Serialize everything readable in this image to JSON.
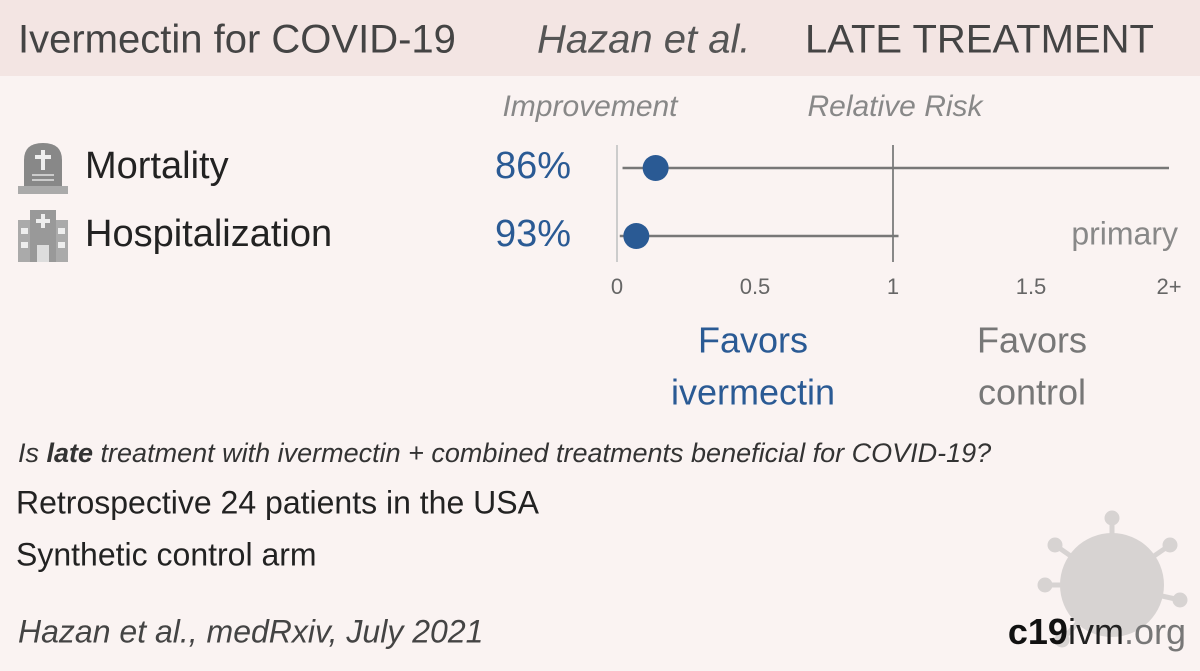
{
  "chart_data": {
    "type": "forest",
    "title": "Ivermectin for COVID-19",
    "subtitle": "Hazan et al.",
    "tag": "LATE TREATMENT",
    "improvement_header": "Improvement",
    "axis_header": "Relative Risk",
    "categories": [
      "Mortality",
      "Hospitalization"
    ],
    "values": [
      0.14,
      0.07
    ],
    "ci_lower": [
      0.02,
      0.01
    ],
    "ci_upper": [
      2.0,
      1.02
    ],
    "improvement": {
      "values": [
        86,
        93
      ],
      "value_labels": [
        "86%",
        "93%"
      ]
    },
    "row_note": {
      "row": 1,
      "text": "primary"
    },
    "xlim": [
      0,
      2
    ],
    "xticks": [
      0,
      0.5,
      1,
      1.5,
      {
        "value": 2,
        "label": "2+"
      }
    ],
    "reference": 1,
    "color": "#2a5a94",
    "favors_left": [
      "Favors",
      "ivermectin"
    ],
    "favors_right": [
      "Favors",
      "control"
    ]
  },
  "question": [
    "Is ",
    "late",
    " treatment with ivermectin + combined treatments beneficial for COVID-19?"
  ],
  "details": [
    "Retrospective 24 patients in the USA",
    "Synthetic control arm"
  ],
  "citation": "Hazan et al., medRxiv, July 2021",
  "logo": [
    "c19",
    "ivm",
    ".org"
  ]
}
